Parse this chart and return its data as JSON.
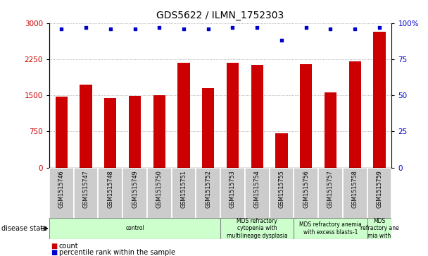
{
  "title": "GDS5622 / ILMN_1752303",
  "samples": [
    "GSM1515746",
    "GSM1515747",
    "GSM1515748",
    "GSM1515749",
    "GSM1515750",
    "GSM1515751",
    "GSM1515752",
    "GSM1515753",
    "GSM1515754",
    "GSM1515755",
    "GSM1515756",
    "GSM1515757",
    "GSM1515758",
    "GSM1515759"
  ],
  "counts": [
    1480,
    1720,
    1450,
    1490,
    1510,
    2180,
    1650,
    2180,
    2130,
    720,
    2150,
    1560,
    2200,
    2820
  ],
  "percentiles": [
    96,
    97,
    96,
    96,
    97,
    96,
    96,
    97,
    97,
    88,
    97,
    96,
    96,
    97
  ],
  "bar_color": "#cc0000",
  "dot_color": "#0000cc",
  "ylim_left": [
    0,
    3000
  ],
  "ylim_right": [
    0,
    100
  ],
  "yticks_left": [
    0,
    750,
    1500,
    2250,
    3000
  ],
  "yticks_right": [
    0,
    25,
    50,
    75,
    100
  ],
  "ytick_labels_right": [
    "0",
    "25",
    "50",
    "75",
    "100%"
  ],
  "disease_groups": [
    {
      "label": "control",
      "start": 0,
      "end": 7,
      "color": "#ccffcc"
    },
    {
      "label": "MDS refractory\ncytopenia with\nmultilineage dysplasia",
      "start": 7,
      "end": 10,
      "color": "#ccffcc"
    },
    {
      "label": "MDS refractory anemia\nwith excess blasts-1",
      "start": 10,
      "end": 13,
      "color": "#ccffcc"
    },
    {
      "label": "MDS\nrefractory ane\nmia with",
      "start": 13,
      "end": 14,
      "color": "#ccffcc"
    }
  ],
  "legend_count_color": "#cc0000",
  "legend_percentile_color": "#0000cc",
  "background_color": "#ffffff",
  "tick_label_color_left": "#cc0000",
  "tick_label_color_right": "#0000cc",
  "grid_color": "#999999",
  "sample_box_color": "#cccccc"
}
